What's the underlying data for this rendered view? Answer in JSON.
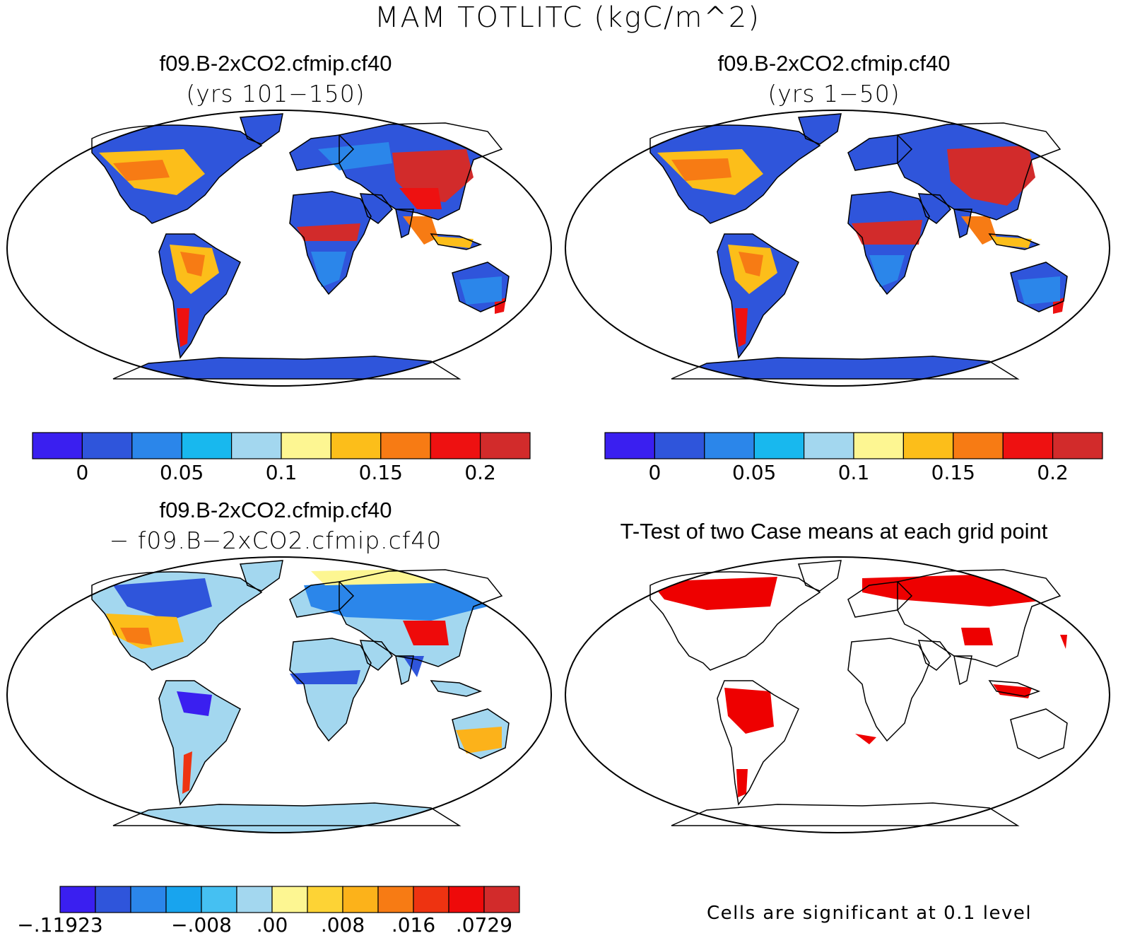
{
  "figure": {
    "title": "MAM TOTLITC (kgC/m^2)"
  },
  "panels": [
    {
      "title": "f09.B-2xCO2.cfmip.cf40",
      "subtitle": "(yrs 101−150)",
      "colorbar": {
        "colors": [
          "#3a1ff0",
          "#2f55db",
          "#2b86ea",
          "#18b8ee",
          "#a3d7ef",
          "#fdf692",
          "#fcbe1a",
          "#f77b14",
          "#ee1111",
          "#d22b2b"
        ],
        "labels": [
          "0",
          "0.05",
          "0.1",
          "0.15",
          "0.2"
        ]
      }
    },
    {
      "title": "f09.B-2xCO2.cfmip.cf40",
      "subtitle": "(yrs 1−50)",
      "colorbar": {
        "colors": [
          "#3a1ff0",
          "#2f55db",
          "#2b86ea",
          "#18b8ee",
          "#a3d7ef",
          "#fdf692",
          "#fcbe1a",
          "#f77b14",
          "#ee1111",
          "#d22b2b"
        ],
        "labels": [
          "0",
          "0.05",
          "0.1",
          "0.15",
          "0.2"
        ]
      }
    },
    {
      "title": "f09.B-2xCO2.cfmip.cf40",
      "subtitle": "− f09.B−2xCO2.cfmip.cf40",
      "colorbar": {
        "colors": [
          "#3a1ff0",
          "#2f55db",
          "#2b86ea",
          "#18a4ee",
          "#45c0f2",
          "#a3d7ef",
          "#fdf692",
          "#fdd335",
          "#fcb21a",
          "#f77b14",
          "#ee3311",
          "#ee0a0a",
          "#d22b2b"
        ],
        "labels": [
          "−.11923",
          "−.008",
          ".00",
          ".008",
          ".016",
          ".0729"
        ]
      }
    },
    {
      "title": "T-Test of two Case means at each grid point",
      "note": "Cells are significant at 0.1 level",
      "colors": {
        "significant": "#ee0000",
        "land": "#ffffff"
      }
    }
  ]
}
